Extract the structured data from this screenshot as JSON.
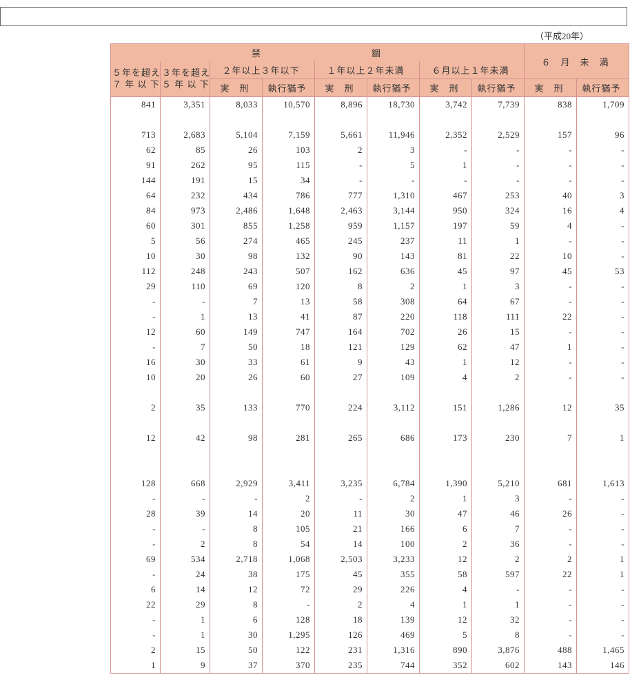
{
  "period_label": "（平成20年）",
  "headers": {
    "group_top": "禁　　　　　錮",
    "col5_7": "５年を超え\n７ 年 以 下",
    "col3_5": "３年を超え\n５ 年 以 下",
    "g2_3": "２年以上３年以下",
    "g1_2": "１年以上２年未満",
    "g6m_1": "６月以上１年未満",
    "g_u6m": "６　月　未　満",
    "jikkei": "実　刑",
    "yuuyo": "執行猶予"
  },
  "table": {
    "background_header": "#f2b9a2",
    "border_color": "#d49090",
    "font_family": "serif",
    "font_size_pt": 10,
    "columns": [
      "5y-7y",
      "3y-5y",
      "2-3実刑",
      "2-3猶予",
      "1-2実刑",
      "1-2猶予",
      "6m-1実刑",
      "6m-1猶予",
      "<6m実刑",
      "<6m猶予"
    ],
    "rows": [
      [
        "841",
        "3,351",
        "8,033",
        "10,570",
        "8,896",
        "18,730",
        "3,742",
        "7,739",
        "838",
        "1,709"
      ],
      "spacer",
      [
        "713",
        "2,683",
        "5,104",
        "7,159",
        "5,661",
        "11,946",
        "2,352",
        "2,529",
        "157",
        "96"
      ],
      [
        "62",
        "85",
        "26",
        "103",
        "2",
        "3",
        "-",
        "-",
        "-",
        "-"
      ],
      [
        "91",
        "262",
        "95",
        "115",
        "-",
        "5",
        "1",
        "-",
        "-",
        "-"
      ],
      [
        "144",
        "191",
        "15",
        "34",
        "-",
        "-",
        "-",
        "-",
        "-",
        "-"
      ],
      [
        "64",
        "232",
        "434",
        "786",
        "777",
        "1,310",
        "467",
        "253",
        "40",
        "3"
      ],
      [
        "84",
        "973",
        "2,486",
        "1,648",
        "2,463",
        "3,144",
        "950",
        "324",
        "16",
        "4"
      ],
      [
        "60",
        "301",
        "855",
        "1,258",
        "959",
        "1,157",
        "197",
        "59",
        "4",
        "-"
      ],
      [
        "5",
        "56",
        "274",
        "465",
        "245",
        "237",
        "11",
        "1",
        "-",
        "-"
      ],
      [
        "10",
        "30",
        "98",
        "132",
        "90",
        "143",
        "81",
        "22",
        "10",
        "-"
      ],
      [
        "112",
        "248",
        "243",
        "507",
        "162",
        "636",
        "45",
        "97",
        "45",
        "53"
      ],
      [
        "29",
        "110",
        "69",
        "120",
        "8",
        "2",
        "1",
        "3",
        "-",
        "-"
      ],
      [
        "-",
        "-",
        "7",
        "13",
        "58",
        "308",
        "64",
        "67",
        "-",
        "-"
      ],
      [
        "-",
        "1",
        "13",
        "41",
        "87",
        "220",
        "118",
        "111",
        "22",
        "-"
      ],
      [
        "12",
        "60",
        "149",
        "747",
        "164",
        "702",
        "26",
        "15",
        "-",
        "-"
      ],
      [
        "-",
        "7",
        "50",
        "18",
        "121",
        "129",
        "62",
        "47",
        "1",
        "-"
      ],
      [
        "16",
        "30",
        "33",
        "61",
        "9",
        "43",
        "1",
        "12",
        "-",
        "-"
      ],
      [
        "10",
        "20",
        "26",
        "60",
        "27",
        "109",
        "4",
        "2",
        "-",
        "-"
      ],
      "half",
      [
        "2",
        "35",
        "133",
        "770",
        "224",
        "3,112",
        "151",
        "1,286",
        "12",
        "35"
      ],
      "half",
      [
        "12",
        "42",
        "98",
        "281",
        "265",
        "686",
        "173",
        "230",
        "7",
        "1"
      ],
      "spacer",
      "half",
      [
        "128",
        "668",
        "2,929",
        "3,411",
        "3,235",
        "6,784",
        "1,390",
        "5,210",
        "681",
        "1,613"
      ],
      [
        "-",
        "-",
        "-",
        "2",
        "-",
        "2",
        "1",
        "3",
        "-",
        "-"
      ],
      [
        "28",
        "39",
        "14",
        "20",
        "11",
        "30",
        "47",
        "46",
        "26",
        "-"
      ],
      [
        "-",
        "-",
        "8",
        "105",
        "21",
        "166",
        "6",
        "7",
        "-",
        "-"
      ],
      [
        "-",
        "2",
        "8",
        "54",
        "14",
        "100",
        "2",
        "36",
        "-",
        "-"
      ],
      [
        "69",
        "534",
        "2,718",
        "1,068",
        "2,503",
        "3,233",
        "12",
        "2",
        "2",
        "1"
      ],
      [
        "-",
        "24",
        "38",
        "175",
        "45",
        "355",
        "58",
        "597",
        "22",
        "1"
      ],
      [
        "6",
        "14",
        "12",
        "72",
        "29",
        "226",
        "4",
        "-",
        "-",
        "-"
      ],
      [
        "22",
        "29",
        "8",
        "-",
        "2",
        "4",
        "1",
        "1",
        "-",
        "-"
      ],
      [
        "-",
        "1",
        "6",
        "128",
        "18",
        "139",
        "12",
        "32",
        "-",
        "-"
      ],
      [
        "-",
        "1",
        "30",
        "1,295",
        "126",
        "469",
        "5",
        "8",
        "-",
        "-"
      ],
      [
        "2",
        "15",
        "50",
        "122",
        "231",
        "1,316",
        "890",
        "3,876",
        "488",
        "1,465"
      ],
      [
        "1",
        "9",
        "37",
        "370",
        "235",
        "744",
        "352",
        "602",
        "143",
        "146"
      ]
    ]
  }
}
